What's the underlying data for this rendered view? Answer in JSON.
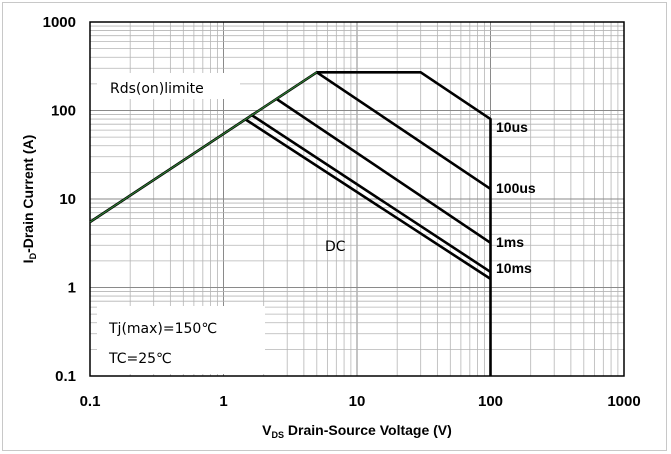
{
  "chart_data": {
    "type": "line",
    "xlabel_main": "V",
    "xlabel_sub": "DS",
    "xlabel_rest": " Drain-Source Voltage (V)",
    "ylabel_main": "I",
    "ylabel_sub": "D",
    "ylabel_rest": "-Drain Current (A)",
    "x_scale": "log",
    "y_scale": "log",
    "xlim": [
      0.1,
      1000
    ],
    "ylim": [
      0.1,
      1000
    ],
    "x_ticks": [
      "0.1",
      "1",
      "10",
      "100",
      "1000"
    ],
    "y_ticks": [
      "0.1",
      "1",
      "10",
      "100",
      "1000"
    ],
    "grid": true,
    "series": [
      {
        "name": "10us",
        "points": [
          [
            0.1,
            5.5
          ],
          [
            5.0,
            270
          ],
          [
            30,
            270
          ],
          [
            100,
            80
          ],
          [
            100,
            0.1
          ]
        ]
      },
      {
        "name": "100us",
        "points": [
          [
            5.0,
            270
          ],
          [
            100,
            13
          ]
        ]
      },
      {
        "name": "1ms",
        "points": [
          [
            2.5,
            135
          ],
          [
            100,
            3.2
          ]
        ]
      },
      {
        "name": "10ms",
        "points": [
          [
            1.6,
            90
          ],
          [
            100,
            1.5
          ]
        ]
      },
      {
        "name": "DC",
        "points": [
          [
            1.45,
            80
          ],
          [
            100,
            1.25
          ]
        ]
      }
    ],
    "limit_line": {
      "points": [
        [
          0.1,
          5.5
        ],
        [
          5.0,
          270
        ]
      ],
      "color": "#2e7d32"
    },
    "annotations": {
      "rds": "Rds(on)limite",
      "tj": "Tj(max)=150℃",
      "tc": "TC=25℃",
      "dc": "DC"
    },
    "curve_labels": {
      "l10us": "10us",
      "l100us": "100us",
      "l1ms": "1ms",
      "l10ms": "10ms"
    }
  }
}
